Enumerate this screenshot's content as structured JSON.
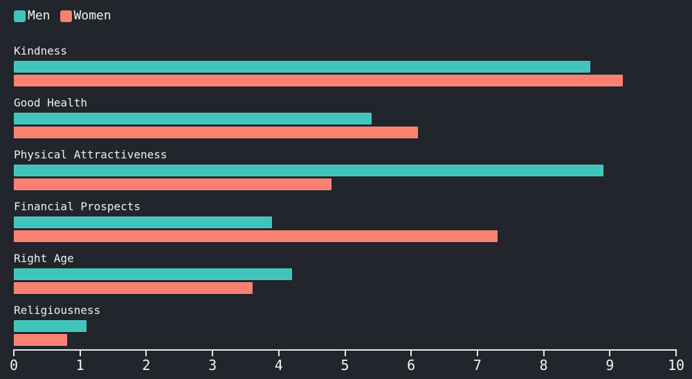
{
  "chart_data": {
    "type": "bar",
    "orientation": "horizontal",
    "title": "",
    "categories": [
      "Kindness",
      "Good Health",
      "Physical Attractiveness",
      "Financial Prospects",
      "Right Age",
      "Religiousness"
    ],
    "series": [
      {
        "name": "Men",
        "color": "#3fc5bc",
        "values": [
          8.7,
          5.4,
          8.9,
          3.9,
          4.2,
          1.1
        ]
      },
      {
        "name": "Women",
        "color": "#fa8072",
        "values": [
          9.2,
          6.1,
          4.8,
          7.3,
          3.6,
          0.8
        ]
      }
    ],
    "xlabel": "",
    "ylabel": "",
    "xlim": [
      0,
      10
    ],
    "xticks": [
      "0",
      "1",
      "2",
      "3",
      "4",
      "5",
      "6",
      "7",
      "8",
      "9",
      "10"
    ],
    "grid": false,
    "legend_position": "top-left",
    "colors": {
      "background": "#22252b",
      "text": "#f2f4f6",
      "axis": "#e9eaec"
    }
  }
}
